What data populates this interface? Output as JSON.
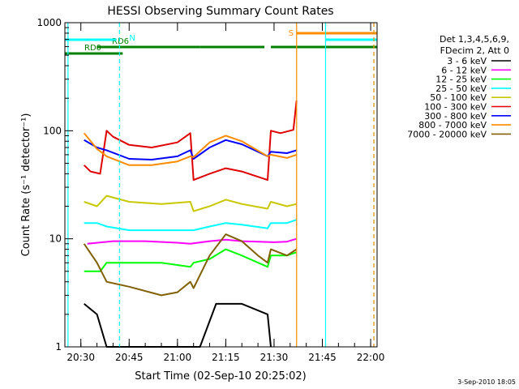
{
  "chart_data": {
    "type": "line",
    "title": "HESSI Observing Summary Count Rates",
    "xlabel": "Start Time (02-Sep-10 20:25:02)",
    "ylabel": "Count Rate (s⁻¹ detector⁻¹)",
    "y_scale": "log",
    "ylim": [
      1,
      1000
    ],
    "xlim": [
      "20:25:02",
      "22:02:00"
    ],
    "x_tick_labels": [
      "20:30",
      "20:45",
      "21:00",
      "21:15",
      "21:30",
      "21:45",
      "22:00"
    ],
    "y_tick_labels": [
      "1",
      "10",
      "100",
      "1000"
    ],
    "grid": false,
    "legend_position": "right",
    "legend_header": [
      "Det 1,3,4,5,6,9,",
      "FDecim 2, Att 0"
    ],
    "timestamp": "3-Sep-2010 18:05",
    "series": [
      {
        "name": "3 - 6 keV",
        "color": "#000000",
        "x": [
          "20:31",
          "20:35",
          "20:38",
          "20:39",
          "21:07",
          "21:12",
          "21:20",
          "21:28",
          "21:29"
        ],
        "y": [
          2.5,
          2.0,
          1.0,
          1.0,
          1.0,
          2.5,
          2.5,
          2.0,
          1.0
        ]
      },
      {
        "name": "6 - 12 keV",
        "color": "#ff00ff",
        "x": [
          "20:32",
          "20:40",
          "20:50",
          "21:00",
          "21:04",
          "21:10",
          "21:15",
          "21:20",
          "21:30",
          "21:34",
          "21:37"
        ],
        "y": [
          9,
          9.5,
          9.5,
          9.2,
          9,
          9.5,
          9.8,
          9.5,
          9.3,
          9.4,
          10
        ]
      },
      {
        "name": "12 - 25 keV",
        "color": "#00ff00",
        "x": [
          "20:31",
          "20:36",
          "20:38",
          "20:45",
          "20:55",
          "21:04",
          "21:05",
          "21:10",
          "21:15",
          "21:20",
          "21:28",
          "21:29",
          "21:34",
          "21:37"
        ],
        "y": [
          5,
          5,
          6,
          6,
          6,
          5.5,
          6,
          6.5,
          8,
          7,
          5.5,
          7,
          7,
          7.5
        ]
      },
      {
        "name": "25 - 50 keV",
        "color": "#00ffff",
        "x": [
          "20:31",
          "20:35",
          "20:38",
          "20:45",
          "20:55",
          "21:04",
          "21:05",
          "21:10",
          "21:15",
          "21:20",
          "21:28",
          "21:29",
          "21:34",
          "21:37"
        ],
        "y": [
          14,
          14,
          13,
          12,
          12,
          12,
          12,
          13,
          14,
          13.5,
          12.5,
          14,
          14,
          15
        ]
      },
      {
        "name": "50 - 100 keV",
        "color": "#c8c800",
        "x": [
          "20:31",
          "20:35",
          "20:38",
          "20:45",
          "20:55",
          "21:04",
          "21:05",
          "21:10",
          "21:15",
          "21:20",
          "21:28",
          "21:29",
          "21:34",
          "21:37"
        ],
        "y": [
          22,
          20,
          25,
          22,
          21,
          22,
          18,
          20,
          23,
          21,
          19,
          22,
          20,
          21
        ]
      },
      {
        "name": "100 - 300 keV",
        "color": "#e00000",
        "x": [
          "20:31",
          "20:33",
          "20:36",
          "20:38",
          "20:40",
          "20:45",
          "20:52",
          "21:00",
          "21:04",
          "21:05",
          "21:10",
          "21:15",
          "21:20",
          "21:28",
          "21:29",
          "21:32",
          "21:36",
          "21:37"
        ],
        "y": [
          48,
          42,
          40,
          100,
          88,
          74,
          70,
          78,
          95,
          35,
          40,
          45,
          42,
          35,
          100,
          95,
          102,
          190
        ]
      },
      {
        "name": "300 - 800 keV",
        "color": "#0000ff",
        "x": [
          "20:31",
          "20:35",
          "20:38",
          "20:45",
          "20:52",
          "21:00",
          "21:04",
          "21:05",
          "21:10",
          "21:15",
          "21:20",
          "21:28",
          "21:29",
          "21:34",
          "21:37"
        ],
        "y": [
          82,
          70,
          66,
          55,
          54,
          58,
          66,
          55,
          70,
          82,
          75,
          58,
          64,
          62,
          66
        ]
      },
      {
        "name": "800 - 7000 keV",
        "color": "#ff8c00",
        "x": [
          "20:31",
          "20:35",
          "20:38",
          "20:45",
          "20:52",
          "21:00",
          "21:04",
          "21:05",
          "21:10",
          "21:15",
          "21:20",
          "21:28",
          "21:29",
          "21:34",
          "21:37"
        ],
        "y": [
          95,
          68,
          58,
          48,
          48,
          52,
          58,
          57,
          78,
          90,
          80,
          58,
          60,
          56,
          60
        ]
      },
      {
        "name": "7000 - 20000 keV",
        "color": "#806000",
        "x": [
          "20:31",
          "20:35",
          "20:38",
          "20:45",
          "20:55",
          "21:00",
          "21:04",
          "21:05",
          "21:10",
          "21:15",
          "21:20",
          "21:25",
          "21:28",
          "21:29",
          "21:34",
          "21:37"
        ],
        "y": [
          9,
          6,
          4,
          3.6,
          3,
          3.2,
          4,
          3.5,
          7,
          11,
          9.5,
          7,
          6,
          8,
          7,
          8
        ]
      }
    ],
    "annotations": {
      "flag_bars": [
        {
          "label": "RD0",
          "color": "#008000",
          "segments": [
            [
              "20:25:02",
              "20:35"
            ]
          ]
        },
        {
          "label": "RD6",
          "color": "#008000",
          "segments": [
            [
              "20:35",
              "21:07"
            ],
            [
              "21:07",
              "21:27"
            ],
            [
              "21:29",
              "22:02"
            ]
          ]
        },
        {
          "label": "",
          "color": "#008000",
          "segments": [
            [
              "20:25:02",
              "20:43"
            ]
          ]
        },
        {
          "label": "N",
          "color": "#00ffff",
          "segments": [
            [
              "20:25:02",
              "20:41"
            ],
            [
              "21:46",
              "22:02"
            ]
          ]
        },
        {
          "label": "S",
          "color": "#ff8c00",
          "segments": [
            [
              "21:37",
              "22:02"
            ]
          ]
        }
      ],
      "vertical_lines": [
        {
          "time": "20:26",
          "color": "#00ffff",
          "style": "solid"
        },
        {
          "time": "20:42",
          "color": "#00ffff",
          "style": "dashed"
        },
        {
          "time": "21:37",
          "color": "#ff8c00",
          "style": "solid"
        },
        {
          "time": "21:46",
          "color": "#00ffff",
          "style": "solid"
        },
        {
          "time": "22:01",
          "color": "#00ffff",
          "style": "dashed"
        },
        {
          "time": "22:01",
          "color": "#ff8c00",
          "style": "dashed"
        }
      ]
    }
  }
}
